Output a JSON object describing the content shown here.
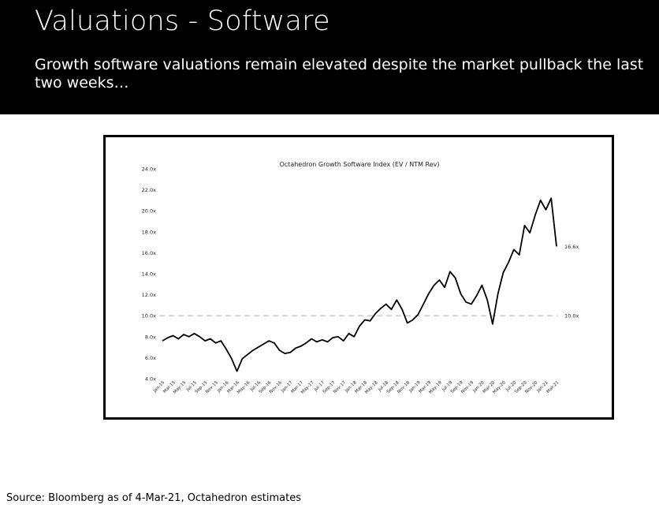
{
  "slide": {
    "title": "Valuations - Software",
    "subtitle": "Growth software valuations remain elevated despite the market pullback the last two weeks…",
    "source": "Source: Bloomberg as of 4-Mar-21, Octahedron estimates"
  },
  "chart_data": {
    "type": "line",
    "title": "Octahedron Growth Software Index (EV / NTM Rev)",
    "xlabel": "",
    "ylabel": "",
    "ylim": [
      4,
      24
    ],
    "ytick_values": [
      4,
      6,
      8,
      10,
      12,
      14,
      16,
      18,
      20,
      22,
      24
    ],
    "ytick_labels": [
      "4.0x",
      "6.0x",
      "8.0x",
      "10.0x",
      "12.0x",
      "14.0x",
      "16.0x",
      "18.0x",
      "20.0x",
      "22.0x",
      "24.0x"
    ],
    "xtick_labels": [
      "Jan-15",
      "Mar-15",
      "May-15",
      "Jul-15",
      "Sep-15",
      "Nov-15",
      "Jan-16",
      "Mar-16",
      "May-16",
      "Jul-16",
      "Sep-16",
      "Nov-16",
      "Jan-17",
      "Mar-17",
      "May-17",
      "Jul-17",
      "Sep-17",
      "Nov-17",
      "Jan-18",
      "Mar-18",
      "May-18",
      "Jul-18",
      "Sep-18",
      "Nov-18",
      "Jan-19",
      "Mar-19",
      "May-19",
      "Jul-19",
      "Sep-19",
      "Nov-19",
      "Jan-20",
      "Mar-20",
      "May-20",
      "Jul-20",
      "Sep-20",
      "Nov-20",
      "Jan-21",
      "Mar-21"
    ],
    "grid": false,
    "legend": "none",
    "line_color": "#000000",
    "reference_line_color": "#cccccc",
    "series": [
      {
        "x": [
          "Jan-15",
          "Feb-15",
          "Mar-15",
          "Apr-15",
          "May-15",
          "Jun-15",
          "Jul-15",
          "Aug-15",
          "Sep-15",
          "Oct-15",
          "Nov-15",
          "Dec-15",
          "Jan-16",
          "Feb-16",
          "Mar-16",
          "Apr-16",
          "May-16",
          "Jun-16",
          "Jul-16",
          "Aug-16",
          "Sep-16",
          "Oct-16",
          "Nov-16",
          "Dec-16",
          "Jan-17",
          "Feb-17",
          "Mar-17",
          "Apr-17",
          "May-17",
          "Jun-17",
          "Jul-17",
          "Aug-17",
          "Sep-17",
          "Oct-17",
          "Nov-17",
          "Dec-17",
          "Jan-18",
          "Feb-18",
          "Mar-18",
          "Apr-18",
          "May-18",
          "Jun-18",
          "Jul-18",
          "Aug-18",
          "Sep-18",
          "Oct-18",
          "Nov-18",
          "Dec-18",
          "Jan-19",
          "Feb-19",
          "Mar-19",
          "Apr-19",
          "May-19",
          "Jun-19",
          "Jul-19",
          "Aug-19",
          "Sep-19",
          "Oct-19",
          "Nov-19",
          "Dec-19",
          "Jan-20",
          "Feb-20",
          "Mar-20",
          "Apr-20",
          "May-20",
          "Jun-20",
          "Jul-20",
          "Aug-20",
          "Sep-20",
          "Oct-20",
          "Nov-20",
          "Dec-20",
          "Jan-21",
          "Feb-21",
          "Mar-21"
        ],
        "values": [
          7.6,
          7.9,
          8.1,
          7.8,
          8.2,
          8.0,
          8.3,
          8.0,
          7.6,
          7.8,
          7.4,
          7.6,
          6.8,
          5.9,
          4.7,
          5.9,
          6.3,
          6.7,
          7.0,
          7.3,
          7.6,
          7.4,
          6.7,
          6.4,
          6.5,
          6.9,
          7.1,
          7.4,
          7.8,
          7.5,
          7.7,
          7.5,
          7.9,
          8.0,
          7.6,
          8.3,
          8.0,
          9.0,
          9.6,
          9.5,
          10.2,
          10.7,
          11.1,
          10.6,
          11.5,
          10.6,
          9.3,
          9.6,
          10.1,
          11.1,
          12.1,
          12.9,
          13.4,
          12.7,
          14.2,
          13.6,
          12.1,
          11.3,
          11.1,
          11.9,
          12.9,
          11.5,
          9.2,
          12.1,
          14.1,
          15.1,
          16.3,
          15.8,
          18.6,
          17.9,
          19.6,
          21.0,
          20.1,
          21.2,
          16.6
        ]
      }
    ],
    "reference_line": {
      "y": 10.0,
      "label": "10.0x"
    },
    "end_label": "16.6x"
  }
}
